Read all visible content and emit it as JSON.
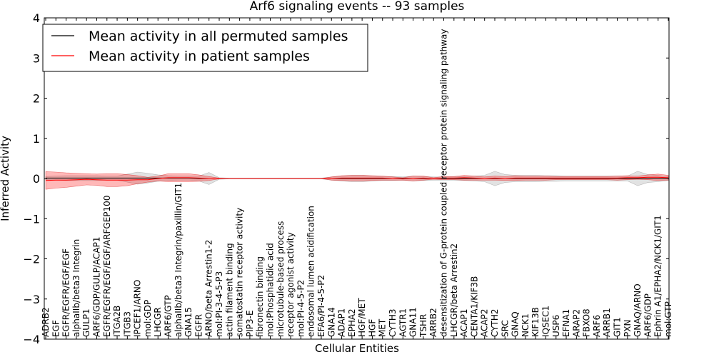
{
  "chart_data": {
    "type": "line",
    "title": "Arf6 signaling events -- 93 samples",
    "xlabel": "Cellular Entities",
    "ylabel": "Inferred Activity",
    "ylim": [
      -4,
      4
    ],
    "yticks": [
      "4",
      "3",
      "2",
      "1",
      "0",
      "−1",
      "−2",
      "−3",
      "−4"
    ],
    "legend": {
      "position": "top-left",
      "entries": [
        {
          "label": "Mean activity in all permuted samples",
          "color": "#000000"
        },
        {
          "label": "Mean activity in patient samples",
          "color": "#ff0000"
        }
      ]
    },
    "categories": [
      "ADRB2",
      "EGF",
      "EGFR/EGFR/EGF/EGF",
      "alphaIIb/beta3 Integrin",
      "GULP1",
      "ARF6/GDP/GULP/ACAP1",
      "EGFR/EGFR/EGF/EGF/ARFGEP100",
      "ITGA2B",
      "ITGB3",
      "IPCEF1/ARNO",
      "mol:GDP",
      "LHCGR",
      "ARF6/GTP",
      "alphaIIb/beta3 Integrin/paxillin/GIT1",
      "GNA15",
      "EGFR",
      "ARNO/beta Arrestin1-2",
      "mol:PI-3-4-5-P3",
      "actin filament binding",
      "somatostatin receptor activity",
      "PIP3-E",
      "fibronectin binding",
      "mol:Phosphatidic acid",
      "microtubule-based process",
      "receptor agonist activity",
      "mol:PI-4-5-P2",
      "endosomal lumen acidification",
      "EFA6/PI-4-5-P2",
      "GNA14",
      "ADAP1",
      "EPHA2",
      "HGF/MET",
      "HGF",
      "MET",
      "CYTH3",
      "AGTR1",
      "GNA11",
      "TSHR",
      "ARRB2",
      "desensitization of G-protein coupled receptor protein signaling pathway",
      "LHCGR/beta Arrestin2",
      "ACAP1",
      "CENTA1/KIF3B",
      "ACAP2",
      "CYTH2",
      "SRC",
      "GNAQ",
      "NCK1",
      "KIF13B",
      "IQSEC1",
      "USP6",
      "EFNA1",
      "ARAP2",
      "FBXO8",
      "ARF6",
      "ARRB1",
      "GIT1",
      "PXN",
      "GNAQ/ARNO",
      "ARF6/GDP",
      "Ephrin A1/EPHA2/NCK1/GIT1",
      "mol:GTP"
    ],
    "series": [
      {
        "name": "Mean activity in all permuted samples",
        "color": "#000000",
        "values": [
          0.01,
          0.01,
          0.01,
          0.01,
          0.01,
          0.01,
          0.01,
          0.01,
          0.01,
          0.01,
          0.01,
          0.01,
          0.01,
          0.01,
          0.01,
          0.0,
          0.0,
          0.0,
          0.0,
          0.0,
          0.0,
          0.0,
          0.0,
          0.0,
          0.0,
          0.0,
          0.0,
          0.0,
          0.0,
          0.0,
          0.0,
          0.0,
          0.0,
          0.0,
          0.0,
          0.0,
          0.0,
          0.0,
          0.0,
          0.0,
          0.0,
          0.0,
          0.0,
          0.0,
          0.0,
          0.0,
          0.0,
          0.0,
          0.0,
          0.0,
          0.0,
          0.0,
          0.0,
          0.0,
          0.0,
          0.0,
          0.0,
          0.0,
          0.0,
          0.0,
          0.0,
          0.0
        ],
        "band": [
          0.04,
          0.05,
          0.06,
          0.06,
          0.06,
          0.06,
          0.05,
          0.05,
          0.1,
          0.15,
          0.12,
          0.08,
          0.06,
          0.05,
          0.05,
          0.06,
          0.15,
          0.02,
          0.01,
          0.01,
          0.01,
          0.01,
          0.01,
          0.01,
          0.01,
          0.01,
          0.01,
          0.01,
          0.04,
          0.06,
          0.08,
          0.08,
          0.06,
          0.05,
          0.05,
          0.04,
          0.06,
          0.05,
          0.04,
          0.04,
          0.04,
          0.05,
          0.06,
          0.08,
          0.18,
          0.1,
          0.08,
          0.08,
          0.08,
          0.07,
          0.07,
          0.06,
          0.06,
          0.06,
          0.06,
          0.06,
          0.06,
          0.06,
          0.18,
          0.1,
          0.08,
          0.05
        ]
      },
      {
        "name": "Mean activity in patient samples",
        "color": "#ff0000",
        "values": [
          -0.05,
          -0.04,
          -0.04,
          -0.03,
          -0.02,
          -0.03,
          -0.04,
          -0.04,
          -0.04,
          -0.03,
          -0.03,
          0.0,
          0.02,
          0.02,
          0.02,
          0.01,
          0.0,
          0.0,
          0.0,
          0.0,
          0.0,
          0.0,
          0.0,
          0.0,
          0.0,
          0.0,
          0.0,
          0.0,
          0.0,
          0.01,
          0.01,
          0.01,
          0.01,
          0.01,
          0.0,
          -0.01,
          0.0,
          0.01,
          0.0,
          0.01,
          0.01,
          0.02,
          0.01,
          0.0,
          0.01,
          0.0,
          0.01,
          0.01,
          0.01,
          0.01,
          0.01,
          0.01,
          0.01,
          0.01,
          0.01,
          0.01,
          0.01,
          0.02,
          0.02,
          0.03,
          0.03,
          0.02
        ],
        "band": [
          0.22,
          0.2,
          0.18,
          0.16,
          0.14,
          0.14,
          0.16,
          0.16,
          0.14,
          0.1,
          0.06,
          0.06,
          0.1,
          0.1,
          0.1,
          0.08,
          0.05,
          0.01,
          0.0,
          0.0,
          0.0,
          0.0,
          0.0,
          0.0,
          0.0,
          0.0,
          0.0,
          0.0,
          0.04,
          0.06,
          0.07,
          0.07,
          0.06,
          0.05,
          0.04,
          0.03,
          0.06,
          0.05,
          0.02,
          0.04,
          0.04,
          0.06,
          0.05,
          0.04,
          0.05,
          0.05,
          0.06,
          0.05,
          0.05,
          0.05,
          0.04,
          0.04,
          0.04,
          0.04,
          0.04,
          0.04,
          0.05,
          0.05,
          0.04,
          0.06,
          0.08,
          0.06
        ]
      }
    ]
  }
}
